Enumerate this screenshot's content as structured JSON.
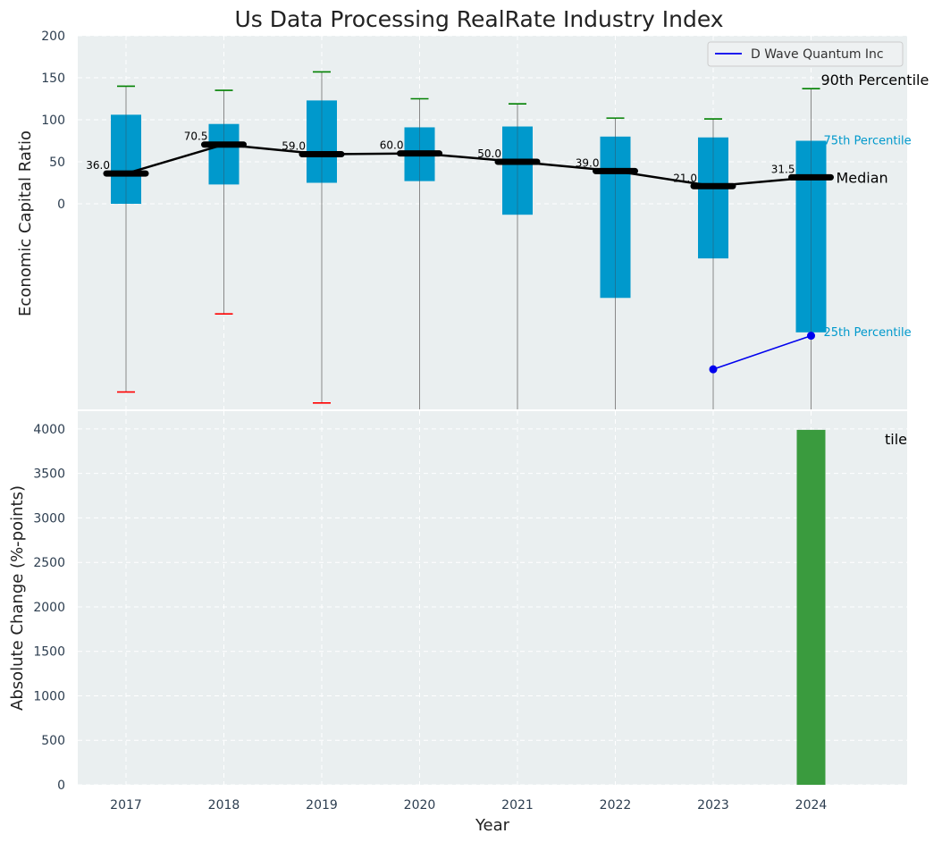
{
  "chart_data": [
    {
      "type": "boxplot",
      "title": "Us Data Processing RealRate Industry Index",
      "ylabel": "Economic Capital Ratio",
      "y_ticks": [
        "200",
        "150",
        "100",
        "50",
        "0"
      ],
      "categories": [
        "2017",
        "2018",
        "2019",
        "2020",
        "2021",
        "2022",
        "2023",
        "2024"
      ],
      "p90": [
        140,
        135,
        157,
        125,
        119,
        102,
        101,
        137
      ],
      "p75": [
        106,
        95,
        123,
        91,
        92,
        80,
        79,
        75
      ],
      "median": [
        36,
        70.5,
        59,
        60,
        50,
        39,
        21,
        31.5
      ],
      "p25": [
        0,
        23,
        25,
        27,
        -13,
        -112,
        -65,
        -153
      ],
      "p10": [
        -224,
        -131,
        -237,
        null,
        null,
        null,
        null,
        null
      ],
      "median_labels": [
        "36.0",
        "70.5",
        "59.0",
        "60.0",
        "50.0",
        "39.0",
        "21.0",
        "31.5"
      ],
      "company": {
        "name": "D Wave Quantum Inc",
        "x": [
          "2023",
          "2024"
        ],
        "values": [
          -197,
          -157
        ]
      },
      "annotations": {
        "p90": "90th Percentile",
        "p75": "75th Percentile",
        "median": "Median",
        "p25": "25th Percentile"
      },
      "colors": {
        "box": "#0099cc",
        "median": "#000000",
        "whisker_high": "#008000",
        "whisker_low": "#ff0000",
        "company": "#0000ee",
        "whisker_line": "#888888"
      }
    },
    {
      "type": "bar",
      "ylabel": "Absolute Change (%-points)",
      "xlabel": "Year",
      "y_ticks": [
        "4000",
        "3500",
        "3000",
        "2500",
        "2000",
        "1500",
        "1000",
        "500",
        "0"
      ],
      "categories": [
        "2017",
        "2018",
        "2019",
        "2020",
        "2021",
        "2022",
        "2023",
        "2024"
      ],
      "values": [
        0,
        0,
        0,
        0,
        0,
        0,
        0,
        3990
      ],
      "ylim": [
        0,
        4200
      ],
      "clipped_label": "tile",
      "bar_color": "#3a9b3e"
    }
  ]
}
